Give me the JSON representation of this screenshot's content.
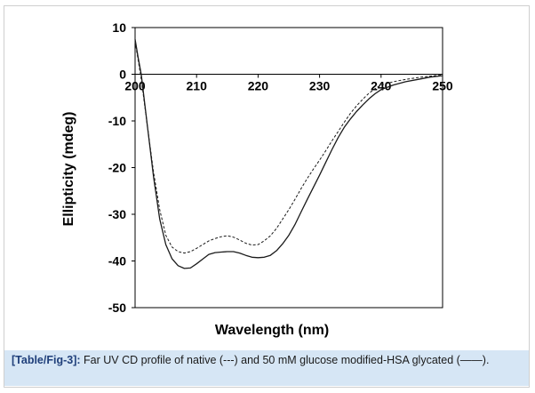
{
  "chart_data": {
    "type": "line",
    "xlabel": "Wavelength (nm)",
    "ylabel": "Ellipticity (mdeg)",
    "xlim": [
      200,
      250
    ],
    "ylim": [
      -50,
      10
    ],
    "x_ticks": [
      "200",
      "210",
      "220",
      "230",
      "240",
      "250"
    ],
    "y_ticks": [
      "10",
      "0",
      "-10",
      "-20",
      "-30",
      "-40",
      "-50"
    ],
    "zero_line": true,
    "series": [
      {
        "name": "native",
        "style": "dashed",
        "x": [
          200,
          200.5,
          201,
          202,
          203,
          204,
          205,
          206,
          207,
          208,
          209,
          210,
          211,
          212,
          213,
          214,
          215,
          216,
          217,
          218,
          219,
          220,
          221,
          222,
          223,
          224,
          225,
          226,
          227,
          228,
          229,
          230,
          231,
          232,
          233,
          234,
          235,
          236,
          237,
          238,
          239,
          240,
          242,
          244,
          246,
          248,
          250
        ],
        "y": [
          7,
          3,
          -1,
          -11,
          -21,
          -29,
          -34.5,
          -37,
          -38,
          -38.3,
          -38,
          -37.3,
          -36.5,
          -35.7,
          -35.2,
          -34.8,
          -34.6,
          -34.9,
          -35.5,
          -36.2,
          -36.6,
          -36.5,
          -35.7,
          -34.6,
          -33,
          -31,
          -29,
          -26.8,
          -24.5,
          -22.3,
          -20.3,
          -18.4,
          -16.4,
          -14.3,
          -12.3,
          -10.3,
          -8.4,
          -6.8,
          -5.4,
          -4.1,
          -3.1,
          -2.3,
          -1.6,
          -1.1,
          -0.7,
          -0.4,
          -0.2
        ]
      },
      {
        "name": "50 mM glucose modified-HSA glycated",
        "style": "solid",
        "x": [
          200,
          200.5,
          201,
          202,
          203,
          204,
          205,
          206,
          207,
          208,
          209,
          210,
          211,
          212,
          213,
          214,
          215,
          216,
          217,
          218,
          219,
          220,
          221,
          222,
          223,
          224,
          225,
          226,
          227,
          228,
          229,
          230,
          231,
          232,
          233,
          234,
          235,
          236,
          237,
          238,
          239,
          240,
          242,
          244,
          246,
          248,
          250
        ],
        "y": [
          7.5,
          3.5,
          0,
          -11,
          -22,
          -31,
          -36.5,
          -39.5,
          -41,
          -41.6,
          -41.5,
          -40.6,
          -39.6,
          -38.6,
          -38.2,
          -38.1,
          -38,
          -38,
          -38.3,
          -38.8,
          -39.2,
          -39.3,
          -39.2,
          -38.8,
          -37.8,
          -36.3,
          -34.5,
          -32.2,
          -29.5,
          -26.8,
          -24.2,
          -21.6,
          -18.9,
          -16.2,
          -13.6,
          -11.4,
          -9.6,
          -8,
          -6.6,
          -5.3,
          -4.2,
          -3.3,
          -2.3,
          -1.6,
          -1.1,
          -0.6,
          -0.3
        ]
      }
    ]
  },
  "caption": {
    "label": "[Table/Fig-3]:",
    "text": "Far UV CD profile of native (---) and 50 mM glucose modified-HSA glycated (——)."
  },
  "colors": {
    "line": "#1a1a1a",
    "caption_bg": "#d6e6f5",
    "caption_label": "#1f3f7a"
  }
}
